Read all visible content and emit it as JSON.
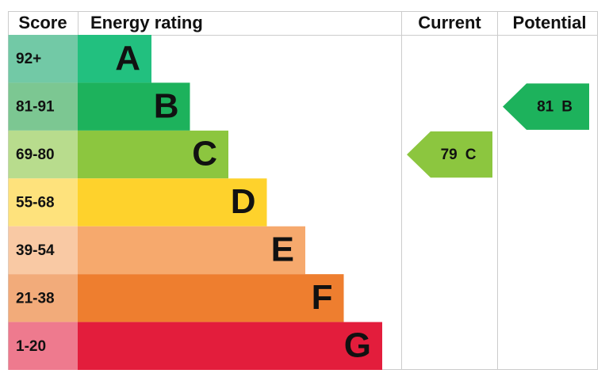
{
  "header": {
    "score": "Score",
    "rating": "Energy rating",
    "current": "Current",
    "potential": "Potential"
  },
  "bands": [
    {
      "score": "92+",
      "letter": "A",
      "color": "#22c07f",
      "score_color": "#72c9a6"
    },
    {
      "score": "81-91",
      "letter": "B",
      "color": "#1db25c",
      "score_color": "#7cc792"
    },
    {
      "score": "69-80",
      "letter": "C",
      "color": "#8cc63f",
      "score_color": "#b8dc8d"
    },
    {
      "score": "55-68",
      "letter": "D",
      "color": "#fed22c",
      "score_color": "#fee27c"
    },
    {
      "score": "39-54",
      "letter": "E",
      "color": "#f6a96d",
      "score_color": "#f9c9a4"
    },
    {
      "score": "21-38",
      "letter": "F",
      "color": "#ee7e2f",
      "score_color": "#f2ab7a"
    },
    {
      "score": "1-20",
      "letter": "G",
      "color": "#e31d3c",
      "score_color": "#ee7a8e"
    }
  ],
  "current": {
    "value": 79,
    "letter": "C"
  },
  "potential": {
    "value": 81,
    "letter": "B"
  }
}
